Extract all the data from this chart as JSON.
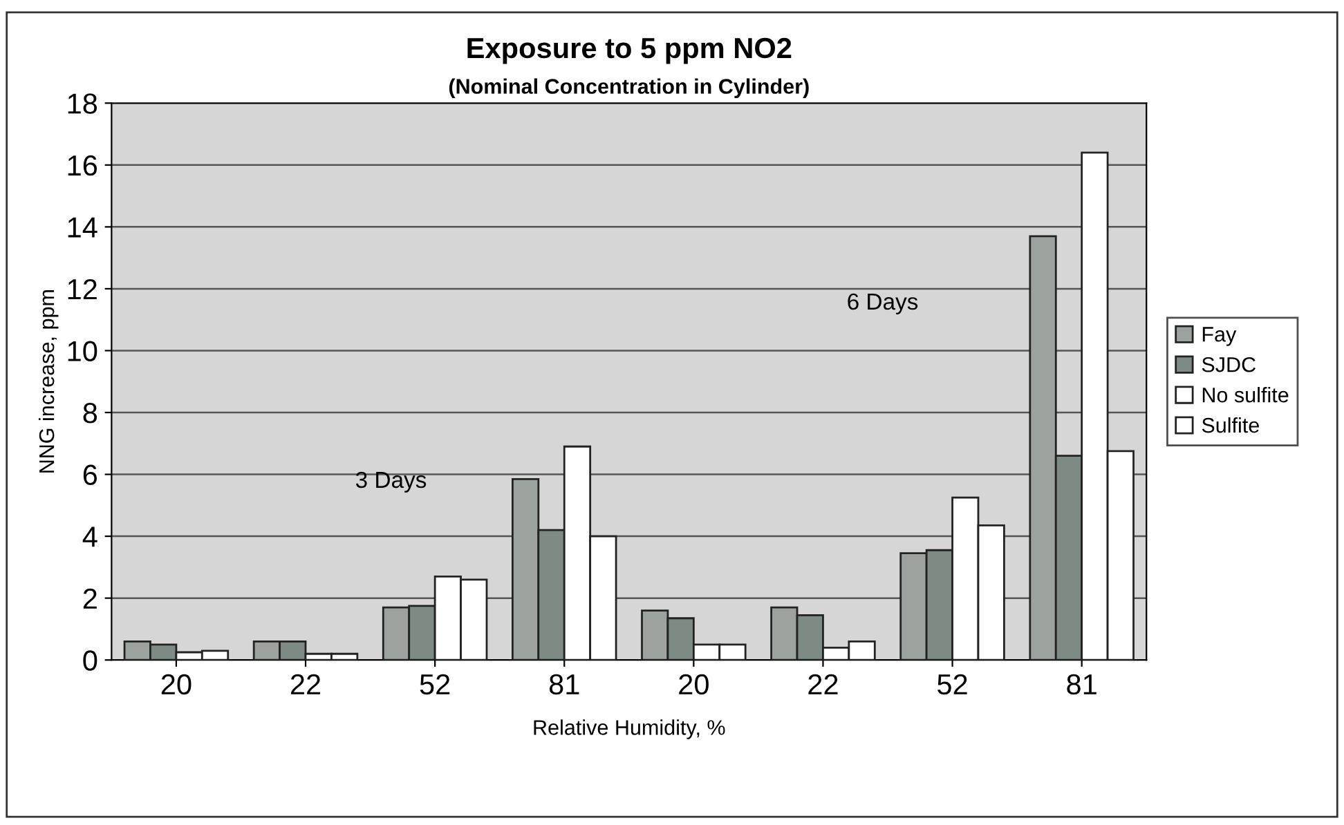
{
  "chart_data": {
    "type": "bar",
    "title": "Exposure to 5 ppm NO2",
    "subtitle": "(Nominal Concentration in Cylinder)",
    "xlabel": "Relative Humidity, %",
    "ylabel": "NNG increase, ppm",
    "categories": [
      "20",
      "22",
      "52",
      "81",
      "20",
      "22",
      "52",
      "81"
    ],
    "series": [
      {
        "name": "Fay",
        "color": "#9ca39e",
        "values": [
          0.6,
          0.6,
          1.7,
          5.85,
          1.6,
          1.7,
          3.45,
          13.7
        ]
      },
      {
        "name": "SJDC",
        "color": "#7d8b84",
        "values": [
          0.5,
          0.6,
          1.75,
          4.2,
          1.35,
          1.45,
          3.55,
          6.6
        ]
      },
      {
        "name": "No sulfite",
        "color": "#ffffff",
        "values": [
          0.25,
          0.2,
          2.7,
          6.9,
          0.5,
          0.4,
          5.25,
          16.4
        ]
      },
      {
        "name": "Sulfite",
        "color": "#ffffff",
        "values": [
          0.3,
          0.2,
          2.6,
          4.0,
          0.5,
          0.6,
          4.35,
          6.75
        ]
      }
    ],
    "annotations": [
      "3 Days",
      "6 Days"
    ],
    "ylim": [
      0,
      18
    ],
    "yticks": [
      0,
      2,
      4,
      6,
      8,
      10,
      12,
      14,
      16,
      18
    ],
    "grid": "y",
    "legend": "right"
  }
}
